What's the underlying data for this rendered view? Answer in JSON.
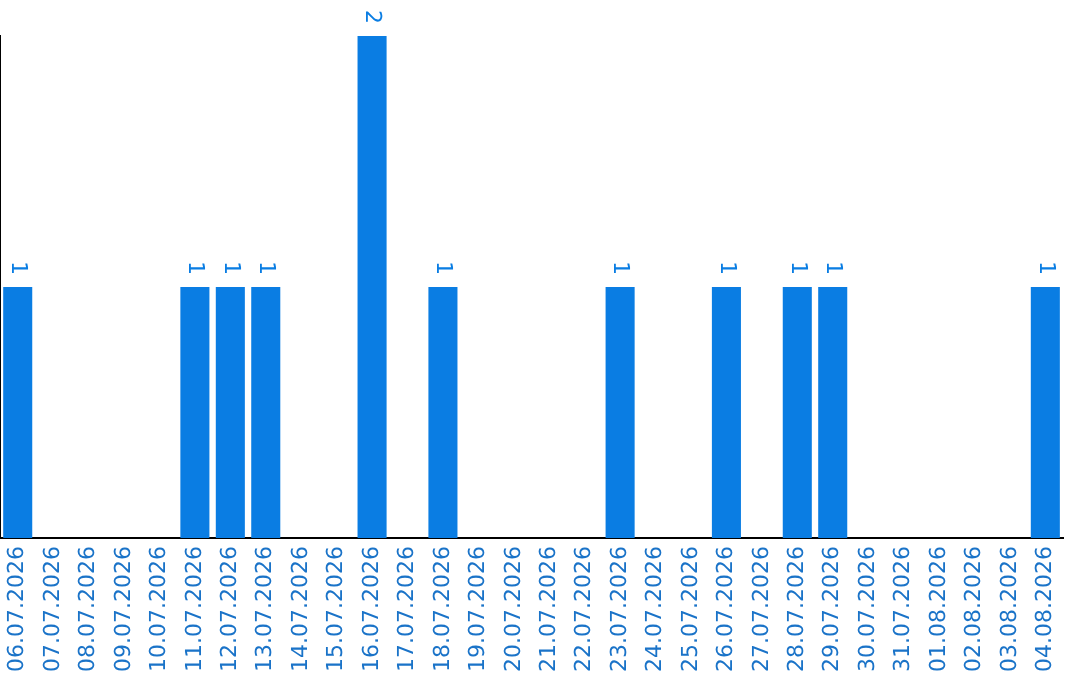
{
  "chart_data": {
    "type": "bar",
    "categories": [
      "06.07.2026",
      "07.07.2026",
      "08.07.2026",
      "09.07.2026",
      "10.07.2026",
      "11.07.2026",
      "12.07.2026",
      "13.07.2026",
      "14.07.2026",
      "15.07.2026",
      "16.07.2026",
      "17.07.2026",
      "18.07.2026",
      "19.07.2026",
      "20.07.2026",
      "21.07.2026",
      "22.07.2026",
      "23.07.2026",
      "24.07.2026",
      "25.07.2026",
      "26.07.2026",
      "27.07.2026",
      "28.07.2026",
      "29.07.2026",
      "30.07.2026",
      "31.07.2026",
      "01.08.2026",
      "02.08.2026",
      "03.08.2026",
      "04.08.2026"
    ],
    "values": [
      1,
      0,
      0,
      0,
      0,
      1,
      1,
      1,
      0,
      0,
      2,
      0,
      1,
      0,
      0,
      0,
      0,
      1,
      0,
      0,
      1,
      0,
      1,
      1,
      0,
      0,
      0,
      0,
      0,
      1
    ],
    "value_labels": [
      "1",
      null,
      null,
      null,
      null,
      "1",
      "1",
      "1",
      null,
      null,
      "2",
      null,
      "1",
      null,
      null,
      null,
      null,
      "1",
      null,
      null,
      "1",
      null,
      "1",
      "1",
      null,
      null,
      null,
      null,
      null,
      "1"
    ],
    "color": "#0a7de3",
    "grid": false,
    "legend": false,
    "tick_labels": "x"
  }
}
